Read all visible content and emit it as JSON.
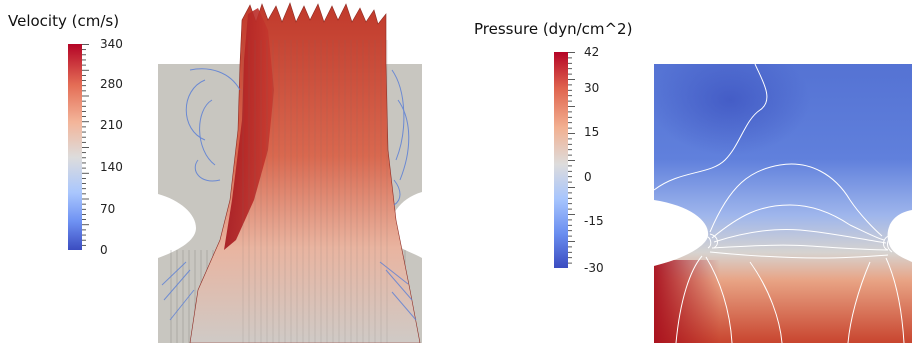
{
  "velocity": {
    "title": "Velocity (cm/s)",
    "colorbar_labels": [
      "340",
      "280",
      "210",
      "140",
      "70",
      "0"
    ]
  },
  "pressure": {
    "title": "Pressure (dyn/cm^2)",
    "colorbar_labels": [
      "42",
      "30",
      "15",
      "0",
      "-15",
      "-30"
    ]
  },
  "colors": {
    "scale_high": "#b40426",
    "scale_mid": "#dddcdc",
    "scale_low": "#3b4cc0",
    "vessel_wall": "#c8c6c0",
    "background": "#ffffff"
  }
}
